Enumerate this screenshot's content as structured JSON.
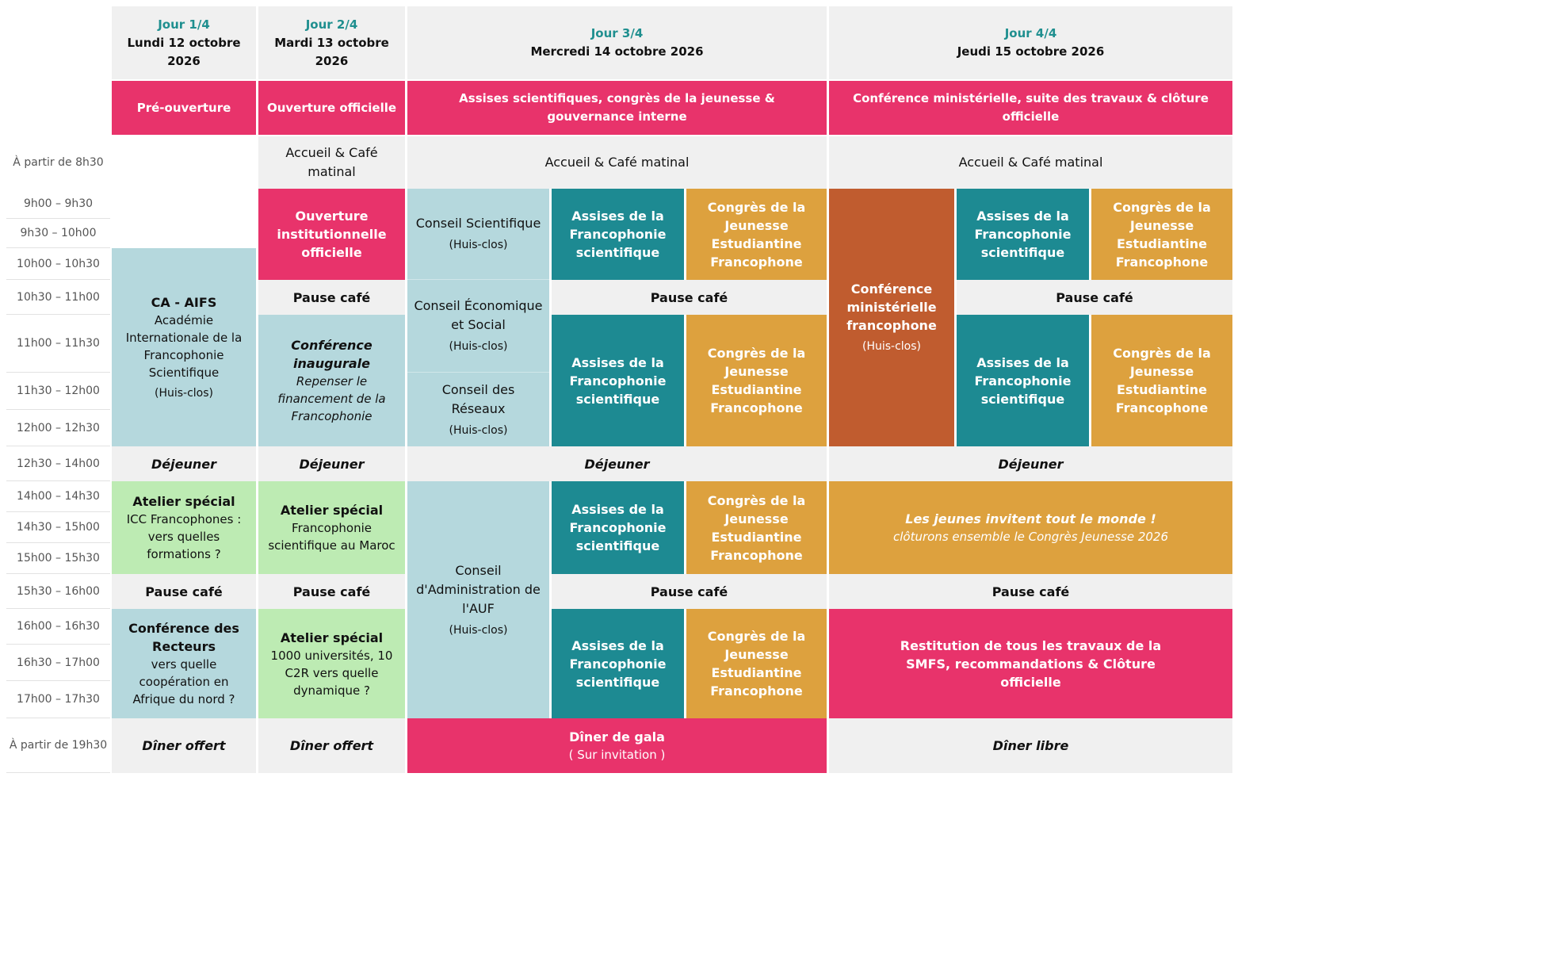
{
  "days": [
    {
      "label": "Jour 1/4",
      "date": "Lundi 12 octobre 2026",
      "theme": "Pré-ouverture"
    },
    {
      "label": "Jour 2/4",
      "date": "Mardi 13 octobre 2026",
      "theme": "Ouverture officielle"
    },
    {
      "label": "Jour 3/4",
      "date": "Mercredi 14 octobre 2026",
      "theme": "Assises scientifiques, congrès de la jeunesse & gouvernance interne"
    },
    {
      "label": "Jour 4/4",
      "date": "Jeudi 15 octobre 2026",
      "theme": "Conférence ministérielle, suite des travaux & clôture officielle"
    }
  ],
  "times": [
    "À partir de 8h30",
    "9h00 – 9h30",
    "9h30 – 10h00",
    "10h00 – 10h30",
    "10h30 – 11h00",
    "11h00 – 11h30",
    "11h30 – 12h00",
    "12h00 – 12h30",
    "12h30 – 14h00",
    "14h00 – 14h30",
    "14h30 – 15h00",
    "15h00 – 15h30",
    "15h30 – 16h00",
    "16h00 – 16h30",
    "16h30 – 17h00",
    "17h00 – 17h30",
    "À partir de 19h30"
  ],
  "common": {
    "accueil_cafe": "Accueil & Café matinal",
    "pause_cafe": "Pause café",
    "dejeuner": "Déjeuner",
    "huis_clos": "(Huis-clos)",
    "assises": "Assises de la Francophonie scientifique",
    "congres": "Congrès de la Jeunesse Estudiantine Francophone",
    "atelier_special": "Atelier spécial",
    "diner_offert": "Dîner offert"
  },
  "day1": {
    "ca_title": "CA - AIFS",
    "ca_desc": "Académie Internationale de la Francophonie Scientifique",
    "atelier_desc": "ICC Francophones : vers quelles formations ?",
    "recteurs_title": "Conférence des Recteurs",
    "recteurs_desc": "vers quelle coopération en Afrique du nord ?"
  },
  "day2": {
    "ouverture": "Ouverture institutionnelle officielle",
    "conf_title": "Conférence inaugurale",
    "conf_desc": "Repenser le financement de la Francophonie",
    "atelier1_desc": "Francophonie scientifique au Maroc",
    "atelier2_desc": "1000 universités, 10 C2R vers quelle dynamique ?"
  },
  "day3": {
    "conseil_sci": "Conseil Scientifique",
    "conseil_eco": "Conseil Économique et Social",
    "conseil_res": "Conseil des Réseaux",
    "conseil_auf": "Conseil d'Administration de l'AUF",
    "diner_gala": "Dîner de gala",
    "sur_invitation": "( Sur invitation )"
  },
  "day4": {
    "conf_min": "Conférence ministérielle francophone",
    "jeunes_title": "Les jeunes invitent tout le monde !",
    "jeunes_desc": "clôturons ensemble le Congrès Jeunesse 2026",
    "restitution": "Restitution de tous les travaux de la SMFS, recommandations & Clôture officielle",
    "diner_libre": "Dîner libre"
  },
  "colors": {
    "pink": "#e8336b",
    "teal": "#1d8a92",
    "orange": "#dda13e",
    "rust": "#c05c2f",
    "light_blue": "#b5d8dd",
    "light_green": "#bdebb3",
    "grey": "#f0f0f0",
    "day_label": "#1f8f8f"
  }
}
